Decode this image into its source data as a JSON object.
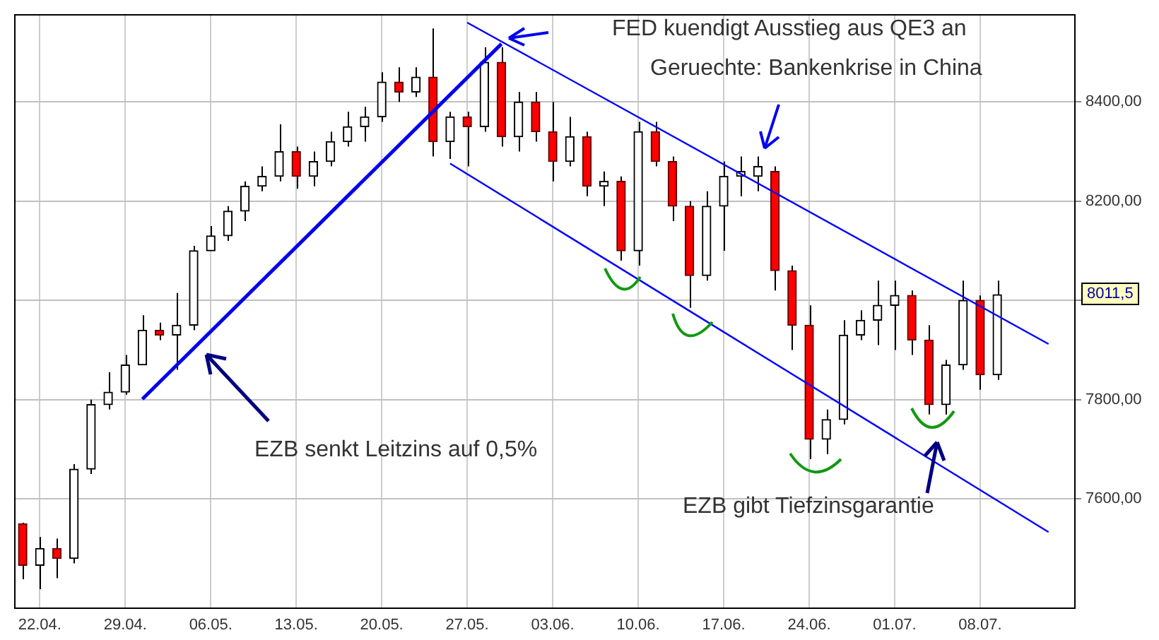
{
  "chart_data": {
    "type": "candlestick",
    "categories": [
      null,
      "22.04.",
      null,
      null,
      null,
      null,
      "29.04.",
      null,
      null,
      null,
      null,
      "06.05.",
      null,
      null,
      null,
      null,
      "13.05.",
      null,
      null,
      null,
      null,
      "20.05.",
      null,
      null,
      null,
      null,
      "27.05.",
      null,
      null,
      null,
      null,
      "03.06.",
      null,
      null,
      null,
      null,
      "10.06.",
      null,
      null,
      null,
      null,
      "17.06.",
      null,
      null,
      null,
      null,
      "24.06.",
      null,
      null,
      null,
      null,
      "01.07.",
      null,
      null,
      null,
      null,
      "08.07.",
      null,
      null,
      null,
      null,
      null
    ],
    "ohlc": [
      [
        7550,
        7552,
        7438,
        7466
      ],
      [
        7466,
        7523,
        7418,
        7500
      ],
      [
        7500,
        7520,
        7440,
        7480
      ],
      [
        7480,
        7670,
        7470,
        7660
      ],
      [
        7660,
        7800,
        7650,
        7790
      ],
      [
        7790,
        7855,
        7780,
        7815
      ],
      [
        7815,
        7890,
        7810,
        7870
      ],
      [
        7870,
        7970,
        7870,
        7940
      ],
      [
        7940,
        7955,
        7920,
        7930
      ],
      [
        7930,
        8015,
        7860,
        7950
      ],
      [
        7950,
        8110,
        7940,
        8100
      ],
      [
        8100,
        8150,
        8100,
        8130
      ],
      [
        8130,
        8190,
        8120,
        8180
      ],
      [
        8180,
        8240,
        8160,
        8230
      ],
      [
        8230,
        8270,
        8220,
        8250
      ],
      [
        8250,
        8355,
        8240,
        8300
      ],
      [
        8300,
        8310,
        8225,
        8250
      ],
      [
        8250,
        8300,
        8230,
        8280
      ],
      [
        8280,
        8340,
        8270,
        8320
      ],
      [
        8320,
        8380,
        8310,
        8350
      ],
      [
        8350,
        8390,
        8320,
        8370
      ],
      [
        8370,
        8460,
        8360,
        8440
      ],
      [
        8440,
        8470,
        8400,
        8420
      ],
      [
        8420,
        8470,
        8410,
        8450
      ],
      [
        8450,
        8548,
        8290,
        8320
      ],
      [
        8320,
        8380,
        8285,
        8370
      ],
      [
        8370,
        8380,
        8270,
        8350
      ],
      [
        8350,
        8510,
        8340,
        8480
      ],
      [
        8480,
        8510,
        8310,
        8330
      ],
      [
        8330,
        8420,
        8300,
        8400
      ],
      [
        8400,
        8420,
        8320,
        8340
      ],
      [
        8340,
        8400,
        8240,
        8280
      ],
      [
        8280,
        8370,
        8270,
        8330
      ],
      [
        8330,
        8340,
        8210,
        8230
      ],
      [
        8230,
        8260,
        8190,
        8240
      ],
      [
        8240,
        8250,
        8080,
        8100
      ],
      [
        8100,
        8360,
        8070,
        8340
      ],
      [
        8340,
        8360,
        8270,
        8280
      ],
      [
        8280,
        8290,
        8160,
        8190
      ],
      [
        8190,
        8200,
        7985,
        8050
      ],
      [
        8050,
        8220,
        8040,
        8190
      ],
      [
        8190,
        8280,
        8100,
        8250
      ],
      [
        8250,
        8290,
        8210,
        8260
      ],
      [
        8250,
        8290,
        8220,
        8270
      ],
      [
        8260,
        8270,
        8020,
        8060
      ],
      [
        8060,
        8070,
        7900,
        7950
      ],
      [
        7950,
        7990,
        7680,
        7720
      ],
      [
        7720,
        7780,
        7690,
        7760
      ],
      [
        7760,
        7960,
        7750,
        7930
      ],
      [
        7930,
        7980,
        7920,
        7960
      ],
      [
        7960,
        8040,
        7910,
        7990
      ],
      [
        7990,
        8040,
        7900,
        8010
      ],
      [
        8010,
        8020,
        7890,
        7920
      ],
      [
        7920,
        7950,
        7770,
        7790
      ],
      [
        7790,
        7880,
        7770,
        7870
      ],
      [
        7870,
        8040,
        7860,
        8000
      ],
      [
        8000,
        8010,
        7820,
        7850
      ],
      [
        7850,
        8040,
        7840,
        8011.5
      ],
      null,
      null,
      null,
      null
    ],
    "series": [
      {
        "type": "line",
        "color": "#0000ee",
        "values": [
          null,
          null,
          null,
          null,
          null,
          null,
          null,
          7801,
          null,
          null,
          null,
          null,
          null,
          null,
          null,
          null,
          null,
          null,
          null,
          null,
          null,
          null,
          null,
          null,
          null,
          null,
          null,
          null,
          8517,
          null,
          null,
          null,
          null,
          null,
          null,
          null,
          null,
          null,
          null,
          null,
          null,
          null,
          null,
          null,
          null,
          null,
          null,
          null,
          null,
          null,
          null,
          null,
          null,
          null,
          null,
          null,
          null,
          null,
          null,
          null,
          null,
          null
        ]
      },
      {
        "type": "line",
        "color": "#0000ff",
        "values": [
          null,
          null,
          null,
          null,
          null,
          null,
          null,
          null,
          null,
          null,
          null,
          null,
          null,
          null,
          null,
          null,
          null,
          null,
          null,
          null,
          null,
          null,
          null,
          null,
          null,
          null,
          8560,
          null,
          null,
          null,
          null,
          null,
          null,
          null,
          null,
          null,
          null,
          null,
          null,
          null,
          null,
          null,
          null,
          null,
          null,
          null,
          null,
          null,
          null,
          null,
          null,
          null,
          null,
          null,
          null,
          null,
          null,
          null,
          null,
          null,
          7912,
          null
        ]
      },
      {
        "type": "line",
        "color": "#0000ff",
        "values": [
          null,
          null,
          null,
          null,
          null,
          null,
          null,
          null,
          null,
          null,
          null,
          null,
          null,
          null,
          null,
          null,
          null,
          null,
          null,
          null,
          null,
          null,
          null,
          null,
          null,
          8276,
          null,
          null,
          null,
          null,
          null,
          null,
          null,
          null,
          null,
          null,
          null,
          null,
          null,
          null,
          null,
          null,
          null,
          null,
          null,
          null,
          null,
          null,
          null,
          null,
          null,
          null,
          null,
          null,
          null,
          null,
          null,
          null,
          null,
          null,
          7533,
          null
        ]
      }
    ],
    "ylim": [
      7381,
      8577
    ],
    "yticks": [
      {
        "value": 7600,
        "label": "7600,00"
      },
      {
        "value": 7800,
        "label": "7800,00"
      },
      {
        "value": 8000,
        "label": null
      },
      {
        "value": 8200,
        "label": "8200,00"
      },
      {
        "value": 8400,
        "label": "8400,00"
      }
    ],
    "grid": true,
    "annotations": [
      "FED kuendigt Ausstieg aus QE3 an",
      "Geruechte: Bankenkrise in China",
      "EZB senkt Leitzins auf 0,5%",
      "EZB gibt Tiefzinsgarantie",
      "8011,5"
    ]
  }
}
